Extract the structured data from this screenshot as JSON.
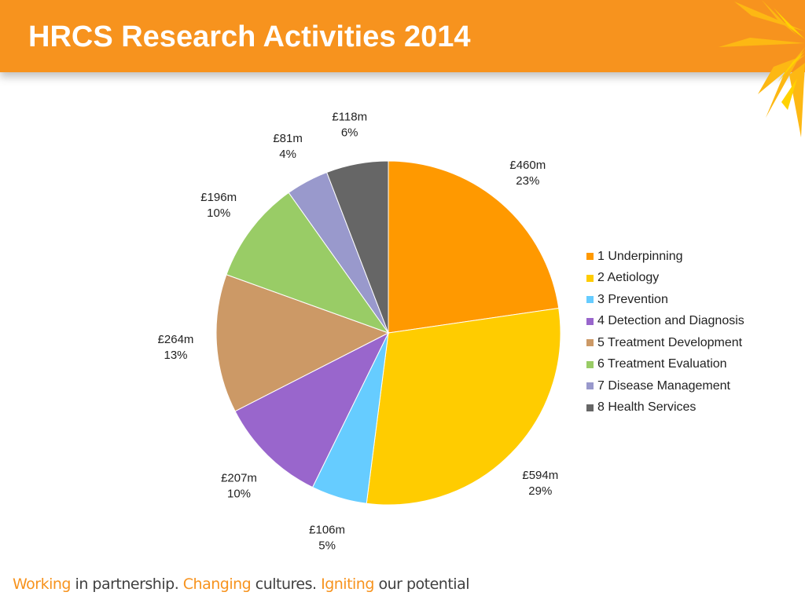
{
  "slide": {
    "title": "HRCS Research Activities 2014"
  },
  "footer": {
    "parts": [
      {
        "text": "Working",
        "accent": true
      },
      {
        "text": " in partnership. ",
        "accent": false
      },
      {
        "text": "Changing",
        "accent": true
      },
      {
        "text": " cultures. ",
        "accent": false
      },
      {
        "text": "Igniting",
        "accent": true
      },
      {
        "text": " our potential",
        "accent": false
      }
    ]
  },
  "colors": {
    "header": "#f7931e",
    "accent": "#f7931e"
  },
  "chart_data": {
    "type": "pie",
    "title": "",
    "start_angle_deg": 0,
    "direction": "clockwise",
    "legend_position": "right",
    "slices": [
      {
        "name": "1 Underpinning",
        "value": 460,
        "value_label": "£460m",
        "percent_label": "23%",
        "color": "#ff9900"
      },
      {
        "name": "2 Aetiology",
        "value": 594,
        "value_label": "£594m",
        "percent_label": "29%",
        "color": "#ffcc00"
      },
      {
        "name": "3 Prevention",
        "value": 106,
        "value_label": "£106m",
        "percent_label": "5%",
        "color": "#66ccff"
      },
      {
        "name": "4 Detection and Diagnosis",
        "value": 207,
        "value_label": "£207m",
        "percent_label": "10%",
        "color": "#9966cc"
      },
      {
        "name": "5 Treatment Development",
        "value": 264,
        "value_label": "£264m",
        "percent_label": "13%",
        "color": "#cc9966"
      },
      {
        "name": "6 Treatment Evaluation",
        "value": 196,
        "value_label": "£196m",
        "percent_label": "10%",
        "color": "#99cc66"
      },
      {
        "name": "7 Disease Management",
        "value": 81,
        "value_label": "£81m",
        "percent_label": "4%",
        "color": "#9999cc"
      },
      {
        "name": "8 Health Services",
        "value": 118,
        "value_label": "£118m",
        "percent_label": "6%",
        "color": "#666666"
      }
    ]
  }
}
